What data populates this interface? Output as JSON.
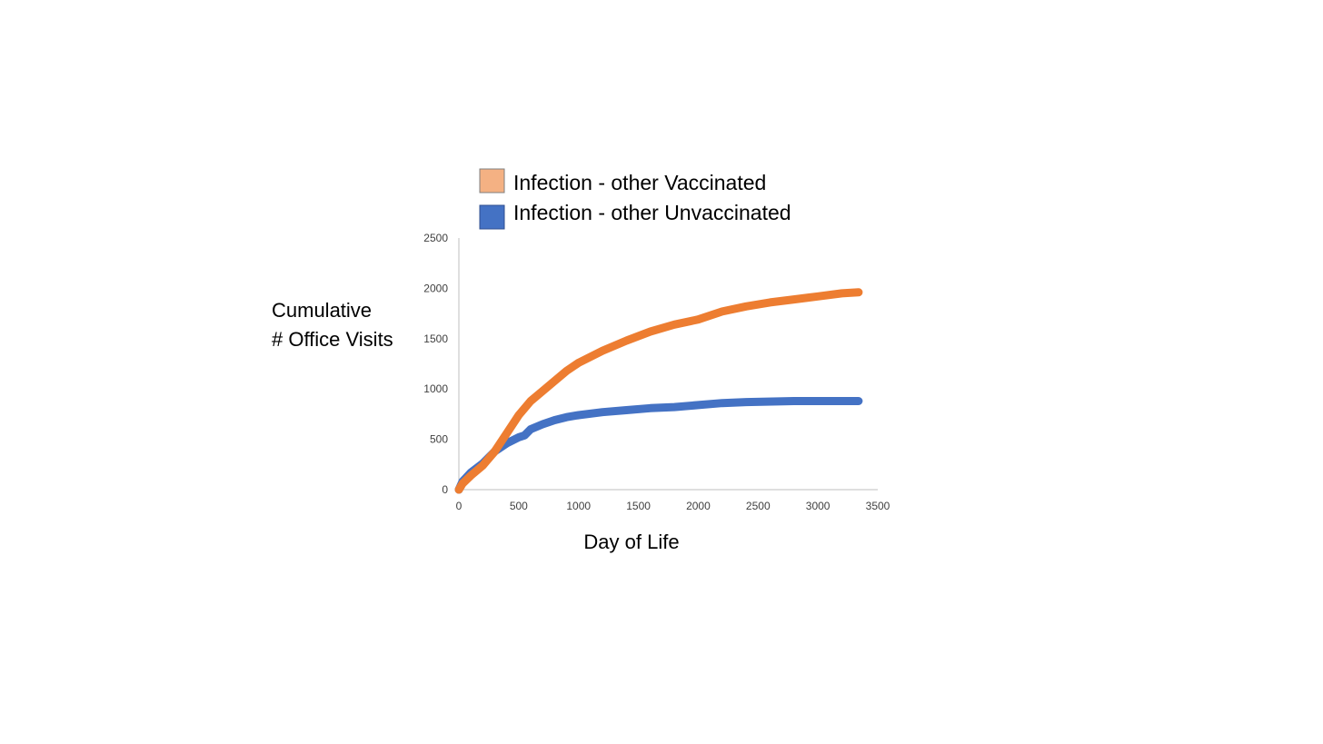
{
  "chart_data": {
    "type": "line",
    "title": "",
    "xlabel": "Day of Life",
    "ylabel_lines": [
      "Cumulative",
      "# Office Visits"
    ],
    "xlim": [
      0,
      3500
    ],
    "ylim": [
      0,
      2500
    ],
    "x_ticks": [
      "0",
      "500",
      "1000",
      "1500",
      "2000",
      "2500",
      "3000",
      "3500"
    ],
    "y_ticks": [
      "0",
      "500",
      "1000",
      "1500",
      "2000",
      "2500"
    ],
    "grid": false,
    "legend_position": "top",
    "series": [
      {
        "name": "Infection - other Vaccinated",
        "line_color": "#ED7D31",
        "legend_swatch_color": "#F4B183",
        "points": [
          [
            0,
            0
          ],
          [
            30,
            60
          ],
          [
            100,
            140
          ],
          [
            200,
            240
          ],
          [
            300,
            380
          ],
          [
            400,
            560
          ],
          [
            500,
            740
          ],
          [
            600,
            880
          ],
          [
            700,
            980
          ],
          [
            800,
            1080
          ],
          [
            900,
            1180
          ],
          [
            1000,
            1260
          ],
          [
            1200,
            1380
          ],
          [
            1400,
            1480
          ],
          [
            1600,
            1570
          ],
          [
            1800,
            1640
          ],
          [
            2000,
            1690
          ],
          [
            2200,
            1770
          ],
          [
            2400,
            1820
          ],
          [
            2600,
            1860
          ],
          [
            2800,
            1890
          ],
          [
            3000,
            1920
          ],
          [
            3200,
            1950
          ],
          [
            3340,
            1960
          ]
        ]
      },
      {
        "name": "Infection - other Unvaccinated",
        "line_color": "#4472C4",
        "legend_swatch_color": "#4472C4",
        "points": [
          [
            0,
            0
          ],
          [
            30,
            80
          ],
          [
            100,
            170
          ],
          [
            200,
            260
          ],
          [
            300,
            380
          ],
          [
            400,
            460
          ],
          [
            500,
            520
          ],
          [
            550,
            540
          ],
          [
            600,
            600
          ],
          [
            700,
            650
          ],
          [
            800,
            690
          ],
          [
            900,
            720
          ],
          [
            1000,
            740
          ],
          [
            1200,
            770
          ],
          [
            1400,
            790
          ],
          [
            1600,
            810
          ],
          [
            1800,
            820
          ],
          [
            2000,
            840
          ],
          [
            2200,
            860
          ],
          [
            2400,
            870
          ],
          [
            2800,
            880
          ],
          [
            3340,
            880
          ]
        ]
      }
    ]
  }
}
